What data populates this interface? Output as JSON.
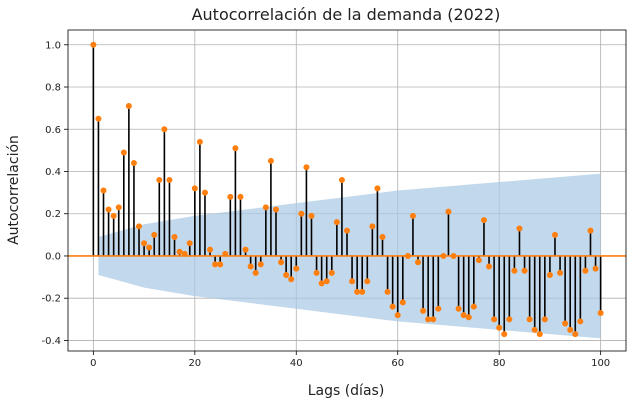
{
  "chart_data": {
    "type": "stem",
    "title": "Autocorrelación de la demanda (2022)",
    "xlabel": "Lags (días)",
    "ylabel": "Autocorrelación",
    "xlim": [
      -5,
      105
    ],
    "ylim": [
      -0.45,
      1.07
    ],
    "xticks": [
      0,
      20,
      40,
      60,
      80,
      100
    ],
    "yticks": [
      -0.4,
      -0.2,
      0.0,
      0.2,
      0.4,
      0.6,
      0.8,
      1.0
    ],
    "grid": true,
    "stem_color": "#000000",
    "marker_color": "#ff7f0e",
    "zero_line_color": "#ff7f0e",
    "confidence_color": "#a8c8e4",
    "confidence_band": {
      "x": [
        1,
        10,
        20,
        30,
        40,
        50,
        60,
        70,
        80,
        90,
        100
      ],
      "upper": [
        0.09,
        0.15,
        0.19,
        0.22,
        0.25,
        0.28,
        0.31,
        0.33,
        0.35,
        0.37,
        0.39
      ],
      "lower": [
        -0.09,
        -0.15,
        -0.19,
        -0.22,
        -0.25,
        -0.28,
        -0.31,
        -0.33,
        -0.35,
        -0.37,
        -0.39
      ]
    },
    "lags": [
      0,
      1,
      2,
      3,
      4,
      5,
      6,
      7,
      8,
      9,
      10,
      11,
      12,
      13,
      14,
      15,
      16,
      17,
      18,
      19,
      20,
      21,
      22,
      23,
      24,
      25,
      26,
      27,
      28,
      29,
      30,
      31,
      32,
      33,
      34,
      35,
      36,
      37,
      38,
      39,
      40,
      41,
      42,
      43,
      44,
      45,
      46,
      47,
      48,
      49,
      50,
      51,
      52,
      53,
      54,
      55,
      56,
      57,
      58,
      59,
      60,
      61,
      62,
      63,
      64,
      65,
      66,
      67,
      68,
      69,
      70,
      71,
      72,
      73,
      74,
      75,
      76,
      77,
      78,
      79,
      80,
      81,
      82,
      83,
      84,
      85,
      86,
      87,
      88,
      89,
      90,
      91,
      92,
      93,
      94,
      95,
      96,
      97,
      98,
      99,
      100
    ],
    "values": [
      1.0,
      0.65,
      0.31,
      0.22,
      0.19,
      0.23,
      0.49,
      0.71,
      0.44,
      0.14,
      0.06,
      0.04,
      0.1,
      0.36,
      0.6,
      0.36,
      0.09,
      0.02,
      0.01,
      0.06,
      0.32,
      0.54,
      0.3,
      0.03,
      -0.04,
      -0.04,
      0.01,
      0.28,
      0.51,
      0.28,
      0.03,
      -0.05,
      -0.08,
      -0.04,
      0.23,
      0.45,
      0.22,
      -0.03,
      -0.09,
      -0.11,
      -0.06,
      0.2,
      0.42,
      0.19,
      -0.08,
      -0.13,
      -0.12,
      -0.08,
      0.16,
      0.36,
      0.12,
      -0.12,
      -0.17,
      -0.17,
      -0.12,
      0.14,
      0.32,
      0.09,
      -0.17,
      -0.24,
      -0.28,
      -0.22,
      0.0,
      0.19,
      -0.03,
      -0.26,
      -0.3,
      -0.3,
      -0.25,
      0.0,
      0.21,
      0.0,
      -0.25,
      -0.28,
      -0.29,
      -0.24,
      -0.02,
      0.17,
      -0.05,
      -0.3,
      -0.34,
      -0.37,
      -0.3,
      -0.07,
      0.13,
      -0.07,
      -0.3,
      -0.35,
      -0.37,
      -0.3,
      -0.09,
      0.1,
      -0.08,
      -0.32,
      -0.35,
      -0.37,
      -0.31,
      -0.07,
      0.12,
      -0.06,
      -0.27
    ]
  }
}
